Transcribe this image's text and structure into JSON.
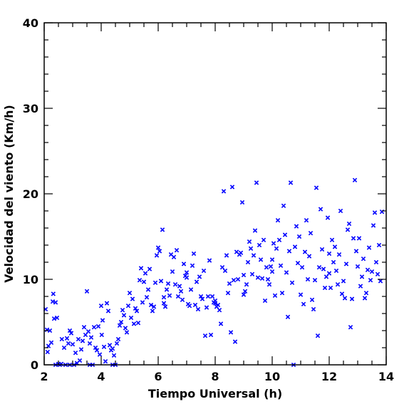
{
  "chart_data": {
    "type": "scatter",
    "title": "",
    "xlabel": "Tiempo Universal (h)",
    "ylabel": "Velocidad del viento (Km/h)",
    "xlim": [
      2,
      14
    ],
    "ylim": [
      0,
      40
    ],
    "x_ticks": [
      2,
      4,
      6,
      8,
      10,
      12,
      14
    ],
    "y_ticks": [
      0,
      10,
      20,
      30,
      40
    ],
    "grid": false,
    "marker": "x",
    "color": "#0000ff",
    "series": [
      {
        "points": [
          [
            2.05,
            6.5
          ],
          [
            2.1,
            4.1
          ],
          [
            2.12,
            1.5
          ],
          [
            2.15,
            2.2
          ],
          [
            2.2,
            4.0
          ],
          [
            2.25,
            2.6
          ],
          [
            2.3,
            7.4
          ],
          [
            2.32,
            8.3
          ],
          [
            2.35,
            5.4
          ],
          [
            2.4,
            7.3
          ],
          [
            2.45,
            5.5
          ],
          [
            2.5,
            0.1
          ],
          [
            2.55,
            0.0
          ],
          [
            2.6,
            0.1
          ],
          [
            2.62,
            3.0
          ],
          [
            2.7,
            2.0
          ],
          [
            2.75,
            0.0
          ],
          [
            2.8,
            3.1
          ],
          [
            2.85,
            2.5
          ],
          [
            2.9,
            4.0
          ],
          [
            2.95,
            3.7
          ],
          [
            3.0,
            2.4
          ],
          [
            3.05,
            0.0
          ],
          [
            3.1,
            1.4
          ],
          [
            3.15,
            0.2
          ],
          [
            3.2,
            3.0
          ],
          [
            3.25,
            0.5
          ],
          [
            3.3,
            1.8
          ],
          [
            3.35,
            2.8
          ],
          [
            3.4,
            4.4
          ],
          [
            3.45,
            3.5
          ],
          [
            3.5,
            8.6
          ],
          [
            3.55,
            3.9
          ],
          [
            3.6,
            2.5
          ],
          [
            3.65,
            3.2
          ],
          [
            3.7,
            0.0
          ],
          [
            3.75,
            4.4
          ],
          [
            3.8,
            2.0
          ],
          [
            3.85,
            1.7
          ],
          [
            3.9,
            4.5
          ],
          [
            3.95,
            1.2
          ],
          [
            4.0,
            6.9
          ],
          [
            4.02,
            3.5
          ],
          [
            4.05,
            5.2
          ],
          [
            4.1,
            2.1
          ],
          [
            4.15,
            0.4
          ],
          [
            4.2,
            7.2
          ],
          [
            4.25,
            6.3
          ],
          [
            4.3,
            2.3
          ],
          [
            4.35,
            1.7
          ],
          [
            4.4,
            1.9
          ],
          [
            4.45,
            1.1
          ],
          [
            4.5,
            0.0
          ],
          [
            4.55,
            2.5
          ],
          [
            4.6,
            3.0
          ],
          [
            4.65,
            4.6
          ],
          [
            4.7,
            5.0
          ],
          [
            4.75,
            6.4
          ],
          [
            4.8,
            5.8
          ],
          [
            4.85,
            4.3
          ],
          [
            4.9,
            3.8
          ],
          [
            4.95,
            6.9
          ],
          [
            5.0,
            8.4
          ],
          [
            5.05,
            5.5
          ],
          [
            5.1,
            7.7
          ],
          [
            5.15,
            4.8
          ],
          [
            5.2,
            6.6
          ],
          [
            5.25,
            6.3
          ],
          [
            5.3,
            4.9
          ],
          [
            5.35,
            9.9
          ],
          [
            5.4,
            11.3
          ],
          [
            5.45,
            7.3
          ],
          [
            5.5,
            9.7
          ],
          [
            5.55,
            10.7
          ],
          [
            5.6,
            7.9
          ],
          [
            5.65,
            8.8
          ],
          [
            5.7,
            11.2
          ],
          [
            5.75,
            7.0
          ],
          [
            5.8,
            6.3
          ],
          [
            5.85,
            6.8
          ],
          [
            5.9,
            9.6
          ],
          [
            5.95,
            12.8
          ],
          [
            6.0,
            13.7
          ],
          [
            6.05,
            13.3
          ],
          [
            6.1,
            9.8
          ],
          [
            6.15,
            15.8
          ],
          [
            6.2,
            7.2
          ],
          [
            6.25,
            6.8
          ],
          [
            6.3,
            8.8
          ],
          [
            6.35,
            9.5
          ],
          [
            6.4,
            8.1
          ],
          [
            6.45,
            12.9
          ],
          [
            6.5,
            10.9
          ],
          [
            6.55,
            12.6
          ],
          [
            6.6,
            9.4
          ],
          [
            6.65,
            13.4
          ],
          [
            6.7,
            8.0
          ],
          [
            6.75,
            9.2
          ],
          [
            6.8,
            8.6
          ],
          [
            6.85,
            7.6
          ],
          [
            6.9,
            11.8
          ],
          [
            6.95,
            10.4
          ],
          [
            7.0,
            10.8
          ],
          [
            7.05,
            7.1
          ],
          [
            7.1,
            6.9
          ],
          [
            7.15,
            8.8
          ],
          [
            7.2,
            11.6
          ],
          [
            7.25,
            13.0
          ],
          [
            7.3,
            7.0
          ],
          [
            7.35,
            9.7
          ],
          [
            7.4,
            6.5
          ],
          [
            7.45,
            10.3
          ],
          [
            7.5,
            8.0
          ],
          [
            7.55,
            7.7
          ],
          [
            7.6,
            11.0
          ],
          [
            7.65,
            3.4
          ],
          [
            7.7,
            6.7
          ],
          [
            7.75,
            8.0
          ],
          [
            7.8,
            12.2
          ],
          [
            7.85,
            3.5
          ],
          [
            7.9,
            8.0
          ],
          [
            7.95,
            7.3
          ],
          [
            8.0,
            7.5
          ],
          [
            8.05,
            6.8
          ],
          [
            8.1,
            7.0
          ],
          [
            8.15,
            6.4
          ],
          [
            8.2,
            4.8
          ],
          [
            8.25,
            11.4
          ],
          [
            8.3,
            20.3
          ],
          [
            8.35,
            11.0
          ],
          [
            8.4,
            12.8
          ],
          [
            8.45,
            8.4
          ],
          [
            8.5,
            9.5
          ],
          [
            8.55,
            3.8
          ],
          [
            8.6,
            20.8
          ],
          [
            8.65,
            9.9
          ],
          [
            8.7,
            2.7
          ],
          [
            8.75,
            13.2
          ],
          [
            8.8,
            10.0
          ],
          [
            8.85,
            12.9
          ],
          [
            8.9,
            13.1
          ],
          [
            8.95,
            19.0
          ],
          [
            9.0,
            8.2
          ],
          [
            9.05,
            8.6
          ],
          [
            9.1,
            9.4
          ],
          [
            9.15,
            12.0
          ],
          [
            9.2,
            14.4
          ],
          [
            9.25,
            13.6
          ],
          [
            9.3,
            10.6
          ],
          [
            9.35,
            12.8
          ],
          [
            9.4,
            15.7
          ],
          [
            9.45,
            21.3
          ],
          [
            9.5,
            10.2
          ],
          [
            9.55,
            14.0
          ],
          [
            9.6,
            12.3
          ],
          [
            9.65,
            10.1
          ],
          [
            9.7,
            14.6
          ],
          [
            9.75,
            7.5
          ],
          [
            9.8,
            11.4
          ],
          [
            9.85,
            10.0
          ],
          [
            9.9,
            9.4
          ],
          [
            9.95,
            11.5
          ],
          [
            10.0,
            10.9
          ],
          [
            10.05,
            14.2
          ],
          [
            10.1,
            8.1
          ],
          [
            10.15,
            13.6
          ],
          [
            10.2,
            16.9
          ],
          [
            10.25,
            14.6
          ],
          [
            10.3,
            11.6
          ],
          [
            10.35,
            8.4
          ],
          [
            10.4,
            18.6
          ],
          [
            10.45,
            15.2
          ],
          [
            10.5,
            10.8
          ],
          [
            10.55,
            5.6
          ],
          [
            10.6,
            13.3
          ],
          [
            10.65,
            21.3
          ],
          [
            10.7,
            9.6
          ],
          [
            10.75,
            0.0
          ],
          [
            10.8,
            13.8
          ],
          [
            10.85,
            16.2
          ],
          [
            10.9,
            11.9
          ],
          [
            10.95,
            15.0
          ],
          [
            11.0,
            8.2
          ],
          [
            11.05,
            11.4
          ],
          [
            11.1,
            7.1
          ],
          [
            11.15,
            13.2
          ],
          [
            11.2,
            16.9
          ],
          [
            11.25,
            10.0
          ],
          [
            11.3,
            12.7
          ],
          [
            11.35,
            15.4
          ],
          [
            11.4,
            7.6
          ],
          [
            11.45,
            6.5
          ],
          [
            11.5,
            9.9
          ],
          [
            11.55,
            20.7
          ],
          [
            11.6,
            3.4
          ],
          [
            11.65,
            11.4
          ],
          [
            11.7,
            18.2
          ],
          [
            11.75,
            13.5
          ],
          [
            11.8,
            11.2
          ],
          [
            11.85,
            9.0
          ],
          [
            11.9,
            10.3
          ],
          [
            11.95,
            17.2
          ],
          [
            12.0,
            13.0
          ],
          [
            12.05,
            9.0
          ],
          [
            12.1,
            14.6
          ],
          [
            12.15,
            12.0
          ],
          [
            12.2,
            13.8
          ],
          [
            12.25,
            11.0
          ],
          [
            12.3,
            9.4
          ],
          [
            12.35,
            12.9
          ],
          [
            12.4,
            18.0
          ],
          [
            12.45,
            8.3
          ],
          [
            12.5,
            9.8
          ],
          [
            12.55,
            7.8
          ],
          [
            12.6,
            11.8
          ],
          [
            12.65,
            15.8
          ],
          [
            12.7,
            16.5
          ],
          [
            12.75,
            4.4
          ],
          [
            12.8,
            7.7
          ],
          [
            12.85,
            14.8
          ],
          [
            12.9,
            21.6
          ],
          [
            12.95,
            13.3
          ],
          [
            13.0,
            11.5
          ],
          [
            13.05,
            14.8
          ],
          [
            13.1,
            9.2
          ],
          [
            13.15,
            10.3
          ],
          [
            13.2,
            12.4
          ],
          [
            13.25,
            7.8
          ],
          [
            13.3,
            8.4
          ],
          [
            13.35,
            11.1
          ],
          [
            13.4,
            13.7
          ],
          [
            13.45,
            9.9
          ],
          [
            13.5,
            10.9
          ],
          [
            13.55,
            16.3
          ],
          [
            13.6,
            17.8
          ],
          [
            13.65,
            12.0
          ],
          [
            13.7,
            10.6
          ],
          [
            13.75,
            14.0
          ],
          [
            13.8,
            9.8
          ],
          [
            13.85,
            17.9
          ],
          [
            2.4,
            0.0
          ],
          [
            2.9,
            0.0
          ],
          [
            3.6,
            0.0
          ],
          [
            4.4,
            0.0
          ],
          [
            6.2,
            7.9
          ],
          [
            7.0,
            10.2
          ],
          [
            8.0,
            7.2
          ],
          [
            9.0,
            10.5
          ],
          [
            10.0,
            12.3
          ],
          [
            12.0,
            10.7
          ]
        ]
      }
    ]
  }
}
